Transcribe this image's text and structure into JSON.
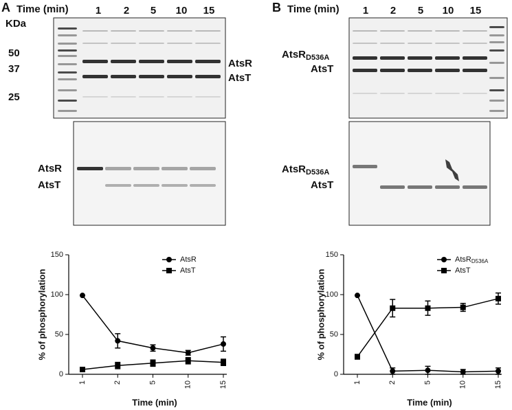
{
  "panels": [
    {
      "label": "A",
      "time_label": "Time (min)",
      "lanes": [
        "1",
        "2",
        "5",
        "10",
        "15"
      ],
      "mw_unit": "KDa",
      "mw_markers": [
        "50",
        "37",
        "25"
      ],
      "gel_labels": [
        {
          "text": "AtsR"
        },
        {
          "text": "AtsT"
        }
      ],
      "autorad_labels": [
        {
          "text": "AtsR"
        },
        {
          "text": "AtsT"
        }
      ]
    },
    {
      "label": "B",
      "time_label": "Time (min)",
      "lanes": [
        "1",
        "2",
        "5",
        "10",
        "15"
      ],
      "gel_labels": [
        {
          "text": "AtsR",
          "subscript": "D536A"
        },
        {
          "text": "AtsT"
        }
      ],
      "autorad_labels": [
        {
          "text": "AtsR",
          "subscript": "D536A"
        },
        {
          "text": "AtsT"
        }
      ]
    }
  ],
  "chart_data": [
    {
      "type": "line",
      "categories": [
        "1",
        "2",
        "5",
        "10",
        "15"
      ],
      "x_label": "Time (min)",
      "y_label": "% of phosphorylation",
      "ylim": [
        0,
        150
      ],
      "yticks": [
        0,
        50,
        100,
        150
      ],
      "series": [
        {
          "name": "AtsR",
          "color": "#000000",
          "marker": "circle",
          "values": [
            99,
            42,
            33,
            27,
            38
          ],
          "errors": [
            0,
            9,
            4,
            3,
            9
          ]
        },
        {
          "name": "AtsT",
          "color": "#000000",
          "marker": "square",
          "values": [
            6,
            11,
            14,
            17,
            15
          ],
          "errors": [
            1,
            4,
            4,
            4,
            4
          ]
        }
      ]
    },
    {
      "type": "line",
      "categories": [
        "1",
        "2",
        "5",
        "10",
        "15"
      ],
      "x_label": "Time (min)",
      "y_label": "% of phosphorylation",
      "ylim": [
        0,
        150
      ],
      "yticks": [
        0,
        50,
        100,
        150
      ],
      "series": [
        {
          "name": "AtsR",
          "subscript": "D536A",
          "color": "#000000",
          "marker": "circle",
          "values": [
            99,
            4,
            5,
            3,
            4
          ],
          "errors": [
            0,
            4,
            5,
            3,
            4
          ]
        },
        {
          "name": "AtsT",
          "color": "#000000",
          "marker": "square",
          "values": [
            22,
            83,
            83,
            84,
            95
          ],
          "errors": [
            3,
            11,
            9,
            5,
            7
          ]
        }
      ]
    }
  ]
}
